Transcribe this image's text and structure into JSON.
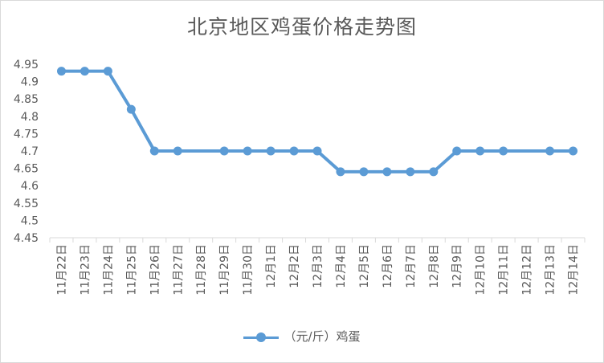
{
  "chart_data": {
    "type": "line",
    "title": "北京地区鸡蛋价格走势图",
    "xlabel": "",
    "ylabel": "",
    "ylim": [
      4.45,
      4.95
    ],
    "yticks": [
      "4.45",
      "4.5",
      "4.55",
      "4.6",
      "4.65",
      "4.7",
      "4.75",
      "4.8",
      "4.85",
      "4.9",
      "4.95"
    ],
    "categories": [
      "11月22日",
      "11月23日",
      "11月24日",
      "11月25日",
      "11月26日",
      "11月27日",
      "11月28日",
      "11月29日",
      "11月30日",
      "12月1日",
      "12月2日",
      "12月3日",
      "12月4日",
      "12月5日",
      "12月6日",
      "12月7日",
      "12月8日",
      "12月9日",
      "12月10日",
      "12月11日",
      "12月12日",
      "12月13日",
      "12月14日"
    ],
    "series": [
      {
        "name": "（元/斤）鸡蛋",
        "color": "#5b9bd5",
        "values": [
          4.93,
          4.93,
          4.93,
          4.82,
          4.7,
          4.7,
          null,
          4.7,
          4.7,
          4.7,
          4.7,
          4.7,
          4.64,
          4.64,
          4.64,
          4.64,
          4.64,
          4.7,
          4.7,
          4.7,
          null,
          4.7,
          4.7
        ]
      }
    ],
    "grid": false,
    "legend_position": "bottom"
  }
}
